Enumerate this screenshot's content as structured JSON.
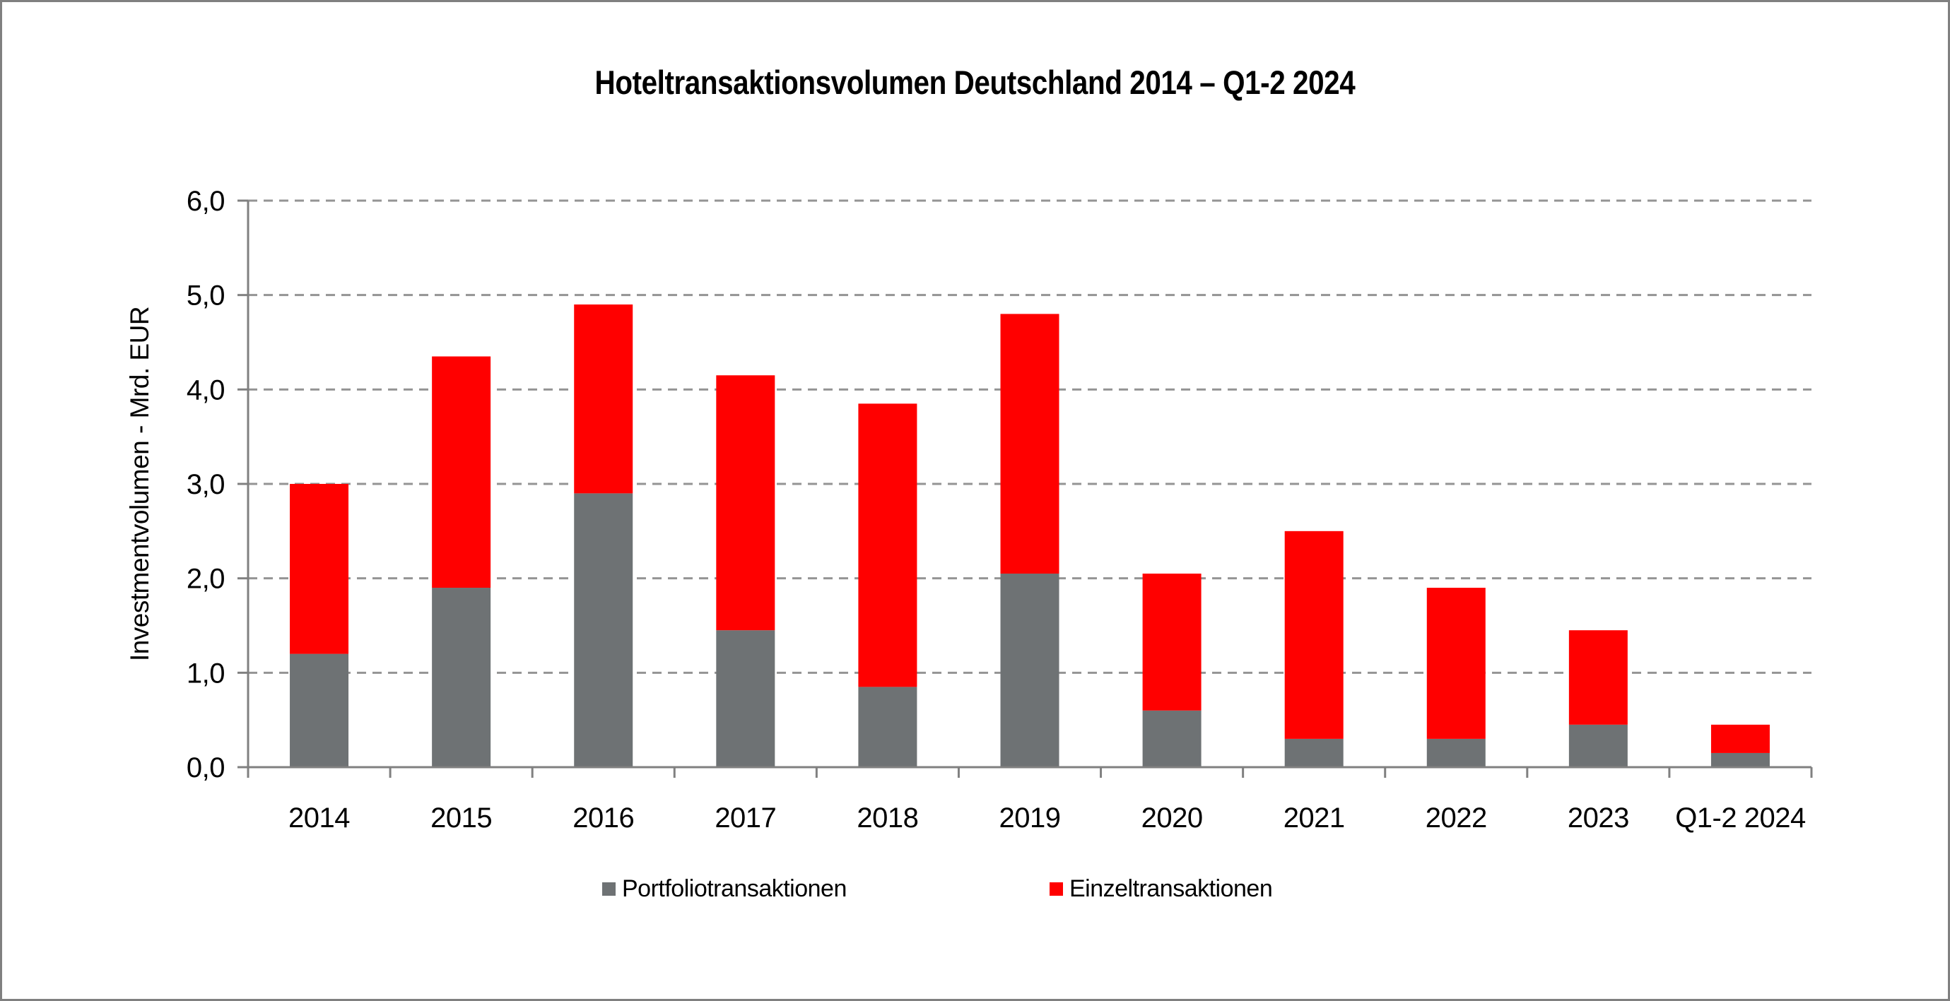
{
  "title": "Hoteltransaktionsvolumen Deutschland 2014 – Q1-2 2024",
  "chart_data": {
    "type": "bar",
    "stacked": true,
    "title": "Hoteltransaktionsvolumen Deutschland 2014 – Q1-2 2024",
    "categories": [
      "2014",
      "2015",
      "2016",
      "2017",
      "2018",
      "2019",
      "2020",
      "2021",
      "2022",
      "2023",
      "Q1-2 2024"
    ],
    "series": [
      {
        "name": "Portfoliotransaktionen",
        "color": "#6E7274",
        "values": [
          1.2,
          1.9,
          2.9,
          1.45,
          0.85,
          2.05,
          0.6,
          0.3,
          0.3,
          0.45,
          0.15
        ]
      },
      {
        "name": "Einzeltransaktionen",
        "color": "#FF0000",
        "values": [
          1.8,
          2.45,
          2.0,
          2.7,
          3.0,
          2.75,
          1.45,
          2.2,
          1.6,
          1.0,
          0.3
        ]
      }
    ],
    "totals": [
      3.0,
      4.35,
      4.9,
      4.15,
      3.85,
      4.8,
      2.05,
      2.5,
      1.9,
      1.45,
      0.45
    ],
    "xlabel": "",
    "ylabel": "Investmentvolumen - Mrd. EUR",
    "ylim": [
      0,
      6
    ],
    "ytick_step": 1.0,
    "ytick_labels": [
      "0,0",
      "1,0",
      "2,0",
      "3,0",
      "4,0",
      "5,0",
      "6,0"
    ],
    "grid": "horizontal-dashed",
    "legend_position": "bottom"
  },
  "legend": {
    "items": [
      {
        "label": "Portfoliotransaktionen",
        "color": "#6E7274"
      },
      {
        "label": "Einzeltransaktionen",
        "color": "#FF0000"
      }
    ]
  },
  "colors": {
    "portfolio": "#6E7274",
    "einzel": "#FF0000",
    "axis": "#808080",
    "gridline": "#949494",
    "frame": "#808080",
    "background": "#FFFFFF",
    "text": "#000000"
  }
}
